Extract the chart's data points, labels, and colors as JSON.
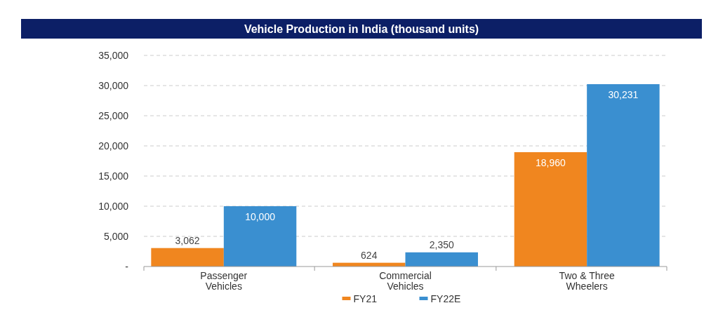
{
  "chart_data": {
    "type": "bar",
    "title": "Vehicle Production in India (thousand units)",
    "categories": [
      "Passenger Vehicles",
      "Commercial Vehicles",
      "Two & Three Wheelers"
    ],
    "series": [
      {
        "name": "FY21",
        "color": "#f0861f",
        "values": [
          3062,
          624,
          18960
        ],
        "value_labels": [
          "3,062",
          "624",
          "18,960"
        ]
      },
      {
        "name": "FY22E",
        "color": "#3a8fd0",
        "values": [
          10000,
          2350,
          30231
        ],
        "value_labels": [
          "10,000",
          "2,350",
          "30,231"
        ]
      }
    ],
    "ylim": [
      0,
      35000
    ],
    "yticks": [
      {
        "value": 0,
        "label": "-"
      },
      {
        "value": 5000,
        "label": "5,000"
      },
      {
        "value": 10000,
        "label": "10,000"
      },
      {
        "value": 15000,
        "label": "15,000"
      },
      {
        "value": 20000,
        "label": "20,000"
      },
      {
        "value": 25000,
        "label": "25,000"
      },
      {
        "value": 30000,
        "label": "30,000"
      },
      {
        "value": 35000,
        "label": "35,000"
      }
    ],
    "grid": "y",
    "legend": "bottom"
  }
}
